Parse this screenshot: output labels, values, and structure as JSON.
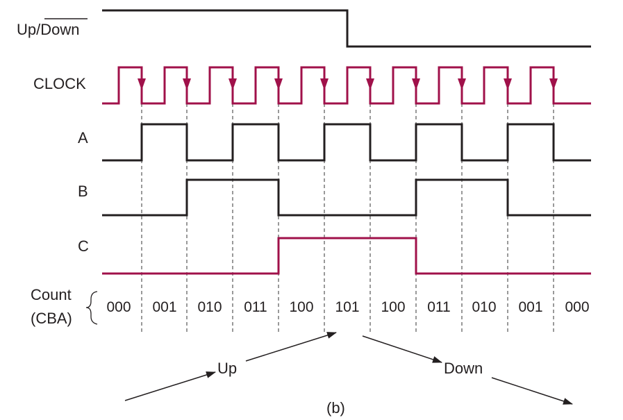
{
  "colors": {
    "ink": "#231f20",
    "accent": "#a0114a",
    "guide": "#333333"
  },
  "signal_labels": {
    "updown_prefix": "Up/",
    "updown_overbar": "Down",
    "clock": "CLOCK",
    "a": "A",
    "b": "B",
    "c": "C"
  },
  "count_label": {
    "line1": "Count",
    "line2": "(CBA)"
  },
  "counts": [
    "000",
    "001",
    "010",
    "011",
    "100",
    "101",
    "100",
    "011",
    "010",
    "001",
    "000"
  ],
  "arrows": {
    "up": "Up",
    "down": "Down"
  },
  "caption": "(b)",
  "timing": {
    "clock_pulses": 10,
    "updown": [
      1,
      1,
      1,
      1,
      1,
      1,
      0,
      0,
      0,
      0,
      0
    ],
    "a": [
      0,
      1,
      0,
      1,
      0,
      1,
      0,
      1,
      0,
      1,
      0
    ],
    "b": [
      0,
      0,
      1,
      1,
      0,
      0,
      0,
      1,
      1,
      0,
      0
    ],
    "c": [
      0,
      0,
      0,
      0,
      1,
      1,
      1,
      0,
      0,
      0,
      0
    ]
  }
}
